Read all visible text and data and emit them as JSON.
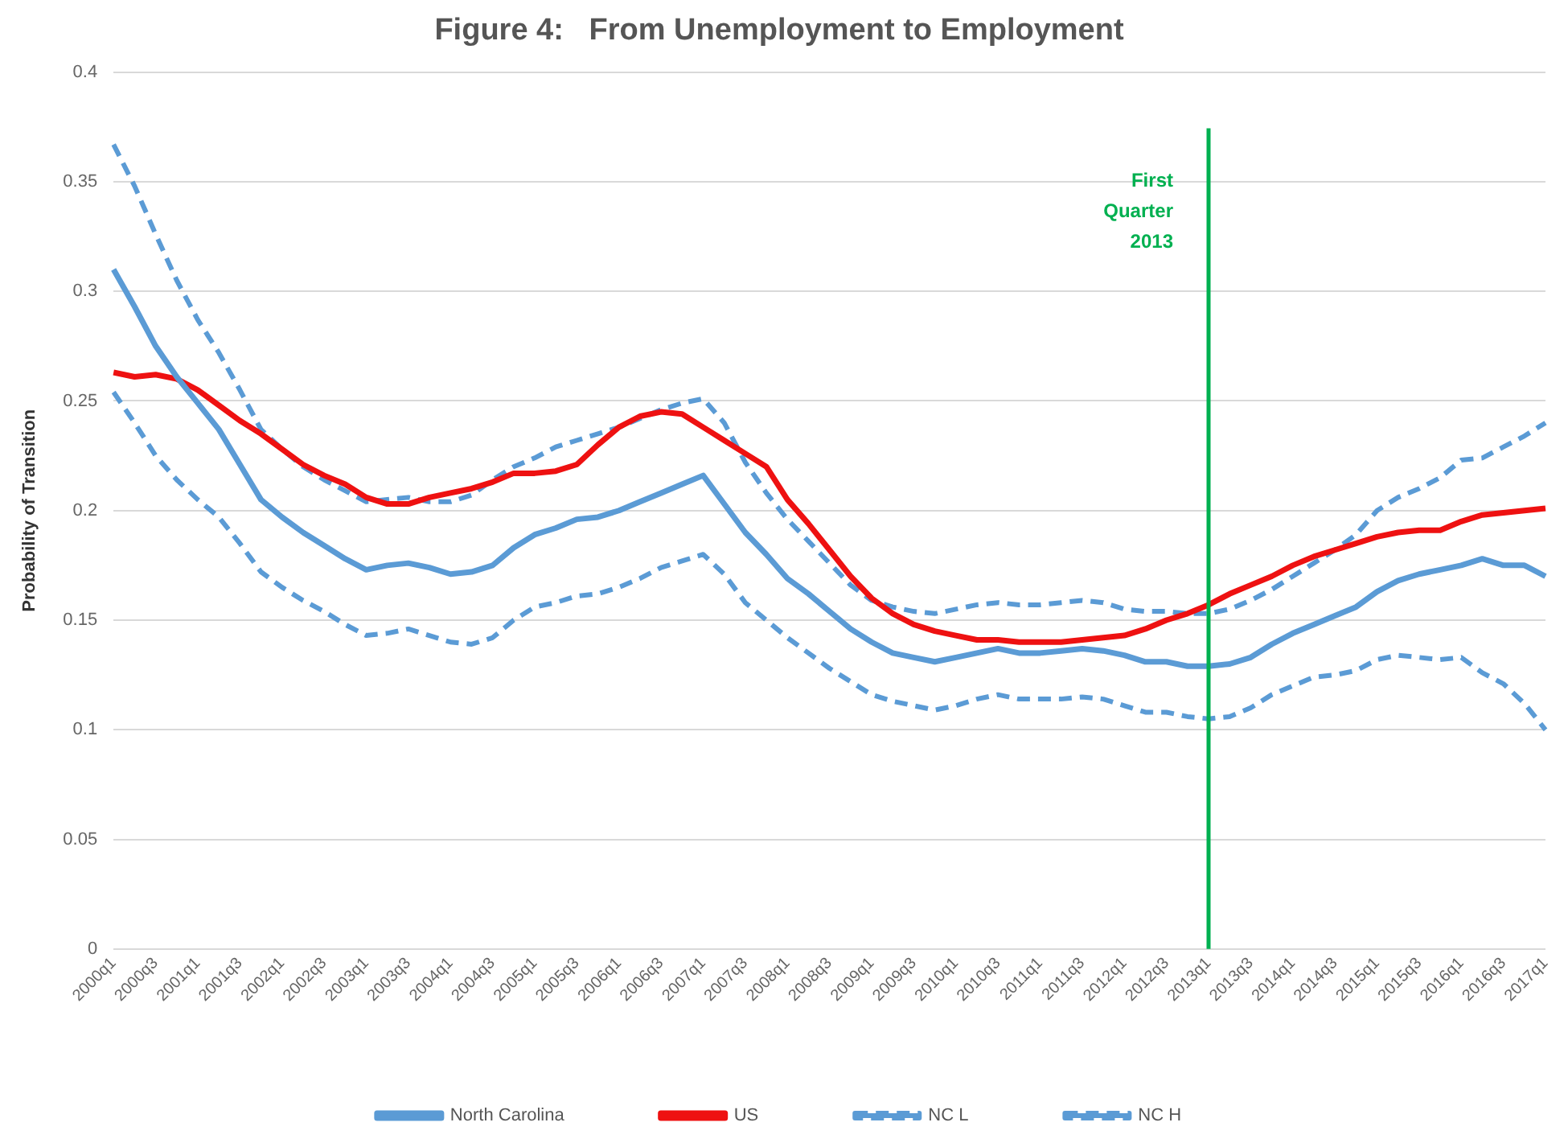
{
  "chart_data": {
    "type": "line",
    "title": "Figure 4:   From Unemployment to Employment",
    "ylabel": "Probability of Transition",
    "categories": [
      "2000q1",
      null,
      "2000q3",
      null,
      "2001q1",
      null,
      "2001q3",
      null,
      "2002q1",
      null,
      "2002q3",
      null,
      "2003q1",
      null,
      "2003q3",
      null,
      "2004q1",
      null,
      "2004q3",
      null,
      "2005q1",
      null,
      "2005q3",
      null,
      "2006q1",
      null,
      "2006q3",
      null,
      "2007q1",
      null,
      "2007q3",
      null,
      "2008q1",
      null,
      "2008q3",
      null,
      "2009q1",
      null,
      "2009q3",
      null,
      "2010q1",
      null,
      "2010q3",
      null,
      "2011q1",
      null,
      "2011q3",
      null,
      "2012q1",
      null,
      "2012q3",
      null,
      "2013q1",
      null,
      "2013q3",
      null,
      "2014q1",
      null,
      "2014q3",
      null,
      "2015q1",
      null,
      "2015q3",
      null,
      "2016q1",
      null,
      "2016q3",
      null,
      "2017q1"
    ],
    "series": [
      {
        "name": "North Carolina",
        "color": "#5b9bd5",
        "line_style": "solid",
        "values": [
          0.31,
          0.293,
          0.275,
          0.261,
          0.249,
          0.237,
          0.221,
          0.205,
          0.197,
          0.19,
          0.184,
          0.178,
          0.173,
          0.175,
          0.176,
          0.174,
          0.171,
          0.172,
          0.175,
          0.183,
          0.189,
          0.192,
          0.196,
          0.197,
          0.2,
          0.204,
          0.208,
          0.212,
          0.216,
          0.203,
          0.19,
          0.18,
          0.169,
          0.162,
          0.154,
          0.146,
          0.14,
          0.135,
          0.133,
          0.131,
          0.133,
          0.135,
          0.137,
          0.135,
          0.135,
          0.136,
          0.137,
          0.136,
          0.134,
          0.131,
          0.131,
          0.129,
          0.129,
          0.13,
          0.133,
          0.139,
          0.144,
          0.148,
          0.152,
          0.156,
          0.163,
          0.168,
          0.171,
          0.173,
          0.175,
          0.178,
          0.175,
          0.175,
          0.17
        ]
      },
      {
        "name": "US",
        "color": "#ee1111",
        "line_style": "solid",
        "values": [
          0.263,
          0.261,
          0.262,
          0.26,
          0.255,
          0.248,
          0.241,
          0.235,
          0.228,
          0.221,
          0.216,
          0.212,
          0.206,
          0.203,
          0.203,
          0.206,
          0.208,
          0.21,
          0.213,
          0.217,
          0.217,
          0.218,
          0.221,
          0.23,
          0.238,
          0.243,
          0.245,
          0.244,
          0.238,
          0.232,
          0.226,
          0.22,
          0.205,
          0.194,
          0.182,
          0.17,
          0.16,
          0.153,
          0.148,
          0.145,
          0.143,
          0.141,
          0.141,
          0.14,
          0.14,
          0.14,
          0.141,
          0.142,
          0.143,
          0.146,
          0.15,
          0.153,
          0.157,
          0.162,
          0.166,
          0.17,
          0.175,
          0.179,
          0.182,
          0.185,
          0.188,
          0.19,
          0.191,
          0.191,
          0.195,
          0.198,
          0.199,
          0.2,
          0.201
        ]
      },
      {
        "name": "NC L",
        "color": "#5b9bd5",
        "line_style": "dashed",
        "values": [
          0.254,
          0.24,
          0.225,
          0.214,
          0.205,
          0.197,
          0.185,
          0.172,
          0.165,
          0.159,
          0.154,
          0.148,
          0.143,
          0.144,
          0.146,
          0.143,
          0.14,
          0.139,
          0.142,
          0.15,
          0.156,
          0.158,
          0.161,
          0.162,
          0.165,
          0.169,
          0.174,
          0.177,
          0.18,
          0.171,
          0.158,
          0.15,
          0.142,
          0.135,
          0.128,
          0.122,
          0.116,
          0.113,
          0.111,
          0.109,
          0.111,
          0.114,
          0.116,
          0.114,
          0.114,
          0.114,
          0.115,
          0.114,
          0.111,
          0.108,
          0.108,
          0.106,
          0.105,
          0.106,
          0.11,
          0.116,
          0.12,
          0.124,
          0.125,
          0.127,
          0.132,
          0.134,
          0.133,
          0.132,
          0.133,
          0.126,
          0.121,
          0.112,
          0.1
        ]
      },
      {
        "name": "NC H",
        "color": "#5b9bd5",
        "line_style": "dashed",
        "values": [
          0.367,
          0.348,
          0.326,
          0.305,
          0.287,
          0.272,
          0.255,
          0.237,
          0.228,
          0.22,
          0.214,
          0.209,
          0.204,
          0.205,
          0.206,
          0.204,
          0.204,
          0.207,
          0.214,
          0.22,
          0.224,
          0.229,
          0.232,
          0.235,
          0.238,
          0.242,
          0.246,
          0.249,
          0.251,
          0.24,
          0.222,
          0.208,
          0.196,
          0.186,
          0.176,
          0.166,
          0.159,
          0.156,
          0.154,
          0.153,
          0.155,
          0.157,
          0.158,
          0.157,
          0.157,
          0.158,
          0.159,
          0.158,
          0.155,
          0.154,
          0.154,
          0.153,
          0.153,
          0.155,
          0.159,
          0.164,
          0.17,
          0.176,
          0.182,
          0.189,
          0.2,
          0.206,
          0.21,
          0.215,
          0.223,
          0.224,
          0.229,
          0.234,
          0.24
        ]
      }
    ],
    "ylim": [
      0,
      0.4
    ],
    "yticks": [
      0,
      0.05,
      0.1,
      0.15,
      0.2,
      0.25,
      0.3,
      0.35,
      0.4
    ],
    "ref_lines": [
      {
        "axis": "x",
        "value": "2013q1",
        "label": "First Quarter 2013",
        "color": "#00b050"
      }
    ],
    "grid": "y",
    "legend": "bottom",
    "marker": "none"
  }
}
